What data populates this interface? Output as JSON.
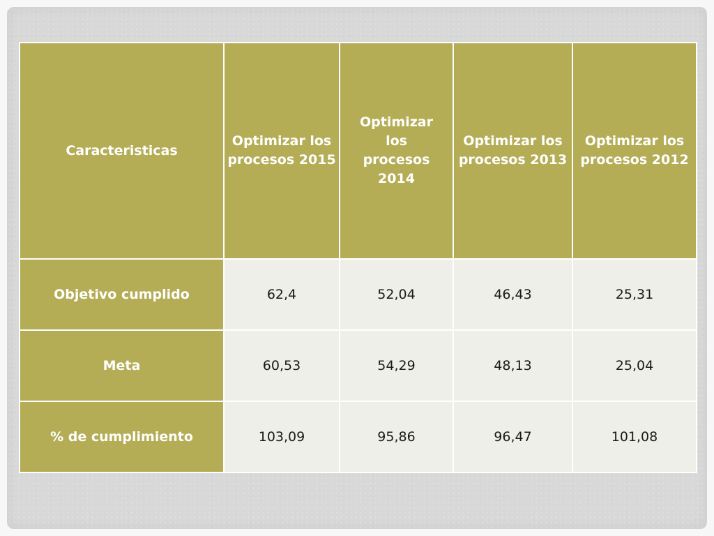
{
  "table": {
    "headers": [
      "Caracteristicas",
      "Optimizar los procesos 2015",
      "Optimizar los procesos 2014",
      "Optimizar los procesos 2013",
      "Optimizar los procesos 2012"
    ],
    "rows": [
      {
        "label": "Objetivo cumplido",
        "values": [
          "62,4",
          "52,04",
          "46,43",
          "25,31"
        ]
      },
      {
        "label": "Meta",
        "values": [
          "60,53",
          "54,29",
          "48,13",
          "25,04"
        ]
      },
      {
        "label": "% de cumplimiento",
        "values": [
          "103,09",
          "95,86",
          "96,47",
          "101,08"
        ]
      }
    ]
  },
  "colors": {
    "header_bg": "#b4ad56",
    "cell_bg": "#efefe9",
    "frame_bg": "#d8d8d8"
  }
}
